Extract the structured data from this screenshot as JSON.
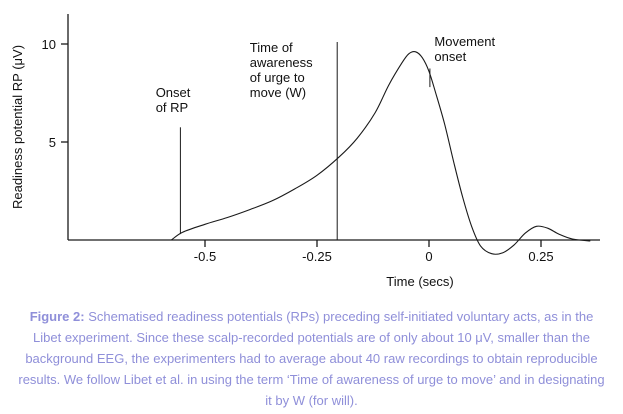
{
  "chart_data": {
    "type": "line",
    "title": "",
    "xlabel": "Time (secs)",
    "ylabel": "Readiness potential RP (μV)",
    "xlim": [
      -0.81,
      0.38
    ],
    "ylim": [
      -1.2,
      11.5
    ],
    "grid": false,
    "x_ticks": [
      -0.5,
      -0.25,
      0,
      0.25
    ],
    "x_tick_labels": [
      "-0.5",
      "-0.25",
      "0",
      "0.25"
    ],
    "y_ticks": [
      5,
      10
    ],
    "y_tick_labels": [
      "5",
      "10"
    ],
    "axis_color": "#1a1a1a",
    "series": [
      {
        "name": "readiness-potential",
        "color": "#1a1a1a",
        "points": [
          [
            -0.575,
            0.0
          ],
          [
            -0.55,
            0.4
          ],
          [
            -0.5,
            0.8
          ],
          [
            -0.45,
            1.15
          ],
          [
            -0.4,
            1.55
          ],
          [
            -0.35,
            2.0
          ],
          [
            -0.3,
            2.6
          ],
          [
            -0.25,
            3.3
          ],
          [
            -0.2,
            4.25
          ],
          [
            -0.16,
            5.2
          ],
          [
            -0.12,
            6.5
          ],
          [
            -0.09,
            7.9
          ],
          [
            -0.06,
            9.05
          ],
          [
            -0.045,
            9.5
          ],
          [
            -0.03,
            9.6
          ],
          [
            -0.015,
            9.3
          ],
          [
            0.0,
            8.6
          ],
          [
            0.015,
            7.5
          ],
          [
            0.035,
            5.9
          ],
          [
            0.055,
            4.0
          ],
          [
            0.075,
            2.2
          ],
          [
            0.095,
            0.7
          ],
          [
            0.115,
            -0.3
          ],
          [
            0.14,
            -0.7
          ],
          [
            0.165,
            -0.65
          ],
          [
            0.19,
            -0.25
          ],
          [
            0.215,
            0.35
          ],
          [
            0.24,
            0.7
          ],
          [
            0.265,
            0.6
          ],
          [
            0.29,
            0.3
          ],
          [
            0.32,
            0.05
          ],
          [
            0.36,
            -0.05
          ]
        ]
      }
    ],
    "annotations": [
      {
        "id": "onset-of-rp",
        "lines": [
          "Onset",
          "of RP"
        ],
        "line_x": -0.555,
        "line_y_top": 5.75,
        "line_y_bottom": 0.3,
        "label_x": -0.61,
        "label_y": 7.3
      },
      {
        "id": "awareness-of-urge",
        "lines": [
          "Time of",
          "awareness",
          "of urge to",
          "move (W)"
        ],
        "line_x": -0.205,
        "line_y_top": 10.1,
        "line_y_bottom": 0.0,
        "label_x": -0.4,
        "label_y": 9.6
      },
      {
        "id": "movement-onset",
        "lines": [
          "Movement",
          "onset"
        ],
        "line_x": 0.002,
        "line_y_top": 8.75,
        "line_y_bottom": 7.8,
        "label_x": 0.012,
        "label_y": 9.9
      }
    ]
  },
  "caption": {
    "label": "Figure 2:",
    "text": "Schematised readiness potentials (RPs) preceding self-initiated voluntary acts, as in the Libet experiment. Since these scalp-recorded potentials are of only about 10 μV, smaller than the background EEG, the experimenters had to average about 40 raw recordings to obtain reproducible results. We follow Libet et al. in using the term ‘Time of awareness of urge to move’ and in designating it by W (for will).",
    "color": "#8f8fd9"
  }
}
